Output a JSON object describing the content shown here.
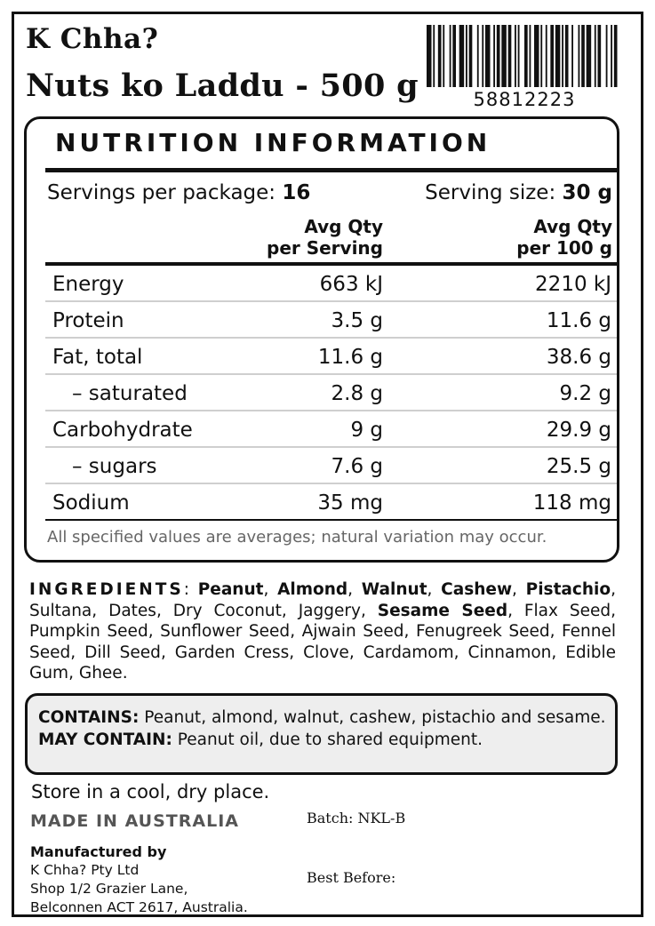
{
  "label": {
    "brand": "K Chha?",
    "product": "Nuts ko Laddu - 500 g",
    "barcode_number": "58812223"
  },
  "nutrition": {
    "title": "NUTRITION INFORMATION",
    "servings_label": "Servings per package: ",
    "servings_value": "16",
    "serving_size_label": "Serving size: ",
    "serving_size_value": "30 g",
    "col_serving_line1": "Avg Qty",
    "col_serving_line2": "per Serving",
    "col_100_line1": "Avg Qty",
    "col_100_line2": "per 100 g",
    "rows": [
      {
        "label": "Energy",
        "per_serving": "663 kJ",
        "per_100g": "2210 kJ"
      },
      {
        "label": "Protein",
        "per_serving": "3.5 g",
        "per_100g": "11.6 g"
      },
      {
        "label": "Fat, total",
        "per_serving": "11.6 g",
        "per_100g": "38.6 g"
      },
      {
        "label": "– saturated",
        "per_serving": "2.8 g",
        "per_100g": "9.2 g"
      },
      {
        "label": "Carbohydrate",
        "per_serving": "9 g",
        "per_100g": "29.9 g"
      },
      {
        "label": "– sugars",
        "per_serving": "7.6 g",
        "per_100g": "25.5 g"
      },
      {
        "label": "Sodium",
        "per_serving": "35 mg",
        "per_100g": "118 mg"
      }
    ],
    "footnote": "All specified values are averages; natural variation may occur."
  },
  "ingredients": {
    "heading": "INGREDIENTS",
    "items": [
      {
        "text": "Peanut",
        "bold": true
      },
      {
        "text": "Almond",
        "bold": true
      },
      {
        "text": "Walnut",
        "bold": true
      },
      {
        "text": "Cashew",
        "bold": true
      },
      {
        "text": "Pistachio",
        "bold": true
      },
      {
        "text": "Sultana",
        "bold": false
      },
      {
        "text": "Dates",
        "bold": false
      },
      {
        "text": "Dry Coconut",
        "bold": false
      },
      {
        "text": "Jaggery",
        "bold": false
      },
      {
        "text": "Sesame Seed",
        "bold": true
      },
      {
        "text": "Flax Seed",
        "bold": false
      },
      {
        "text": "Pumpkin Seed",
        "bold": false
      },
      {
        "text": "Sunflower Seed",
        "bold": false
      },
      {
        "text": "Ajwain Seed",
        "bold": false
      },
      {
        "text": "Fenugreek Seed",
        "bold": false
      },
      {
        "text": "Fennel Seed",
        "bold": false
      },
      {
        "text": "Dill Seed",
        "bold": false
      },
      {
        "text": "Garden Cress",
        "bold": false
      },
      {
        "text": "Clove",
        "bold": false
      },
      {
        "text": "Cardamom",
        "bold": false
      },
      {
        "text": "Cinnamon",
        "bold": false
      },
      {
        "text": "Edible Gum",
        "bold": false
      },
      {
        "text": "Ghee",
        "bold": false
      }
    ]
  },
  "allergens": {
    "contains_label": "CONTAINS:",
    "contains_text": " Peanut, almond, walnut, cashew, pistachio and sesame. ",
    "may_contain_label": "MAY CONTAIN:",
    "may_contain_text": " Peanut oil, due to shared equipment."
  },
  "storage": "Store in a cool, dry place.",
  "origin": "MADE IN AUSTRALIA",
  "batch": "Batch: NKL-B",
  "best_before": "Best Before:",
  "manufacturer": {
    "heading": "Manufactured by",
    "line1": "K Chha? Pty Ltd",
    "line2": "Shop 1/2 Grazier Lane,",
    "line3": "Belconnen ACT 2617, Australia."
  },
  "colors": {
    "ink": "#111111",
    "row_separator": "#cfcfcf",
    "allergen_box": "#eeeeee",
    "footnote": "#666666"
  }
}
